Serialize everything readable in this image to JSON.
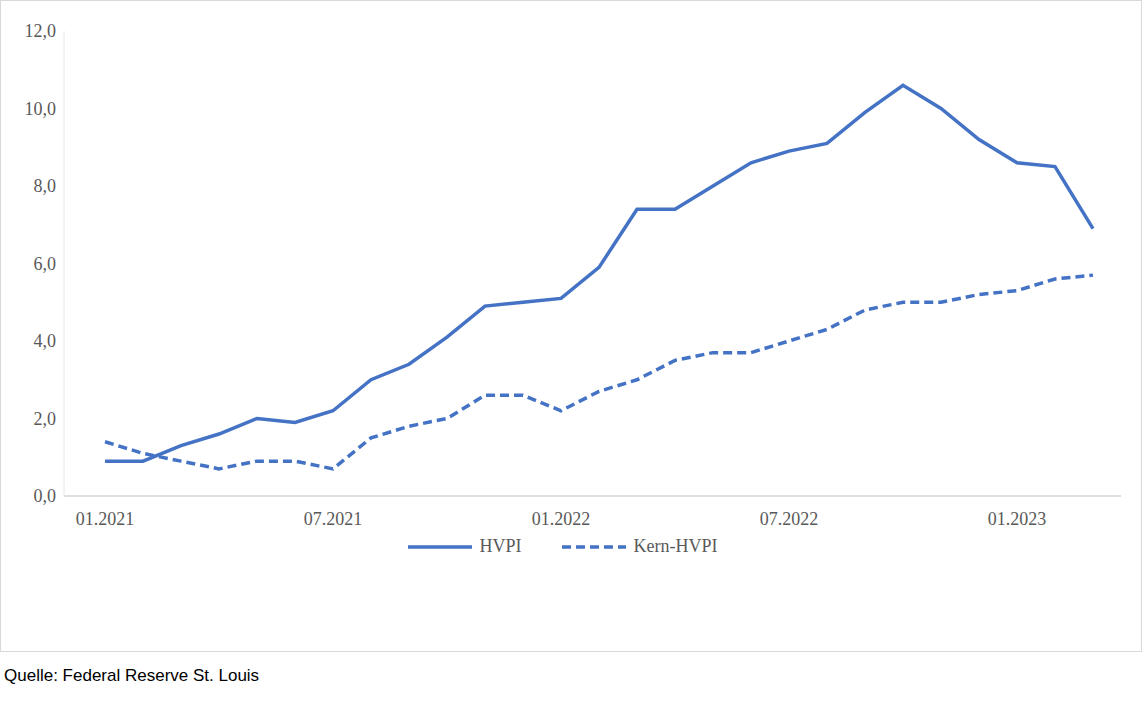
{
  "chart_data": {
    "type": "line",
    "source": "Quelle: Federal Reserve St. Louis",
    "categories": [
      "01.2021",
      null,
      null,
      null,
      null,
      null,
      "07.2021",
      null,
      null,
      null,
      null,
      null,
      "01.2022",
      null,
      null,
      null,
      null,
      null,
      "07.2022",
      null,
      null,
      null,
      null,
      null,
      "01.2023",
      null,
      null
    ],
    "series": [
      {
        "name": "HVPI",
        "color": "#4472c4",
        "line_style": "solid",
        "marker": "none",
        "values": [
          0.9,
          0.9,
          1.3,
          1.6,
          2.0,
          1.9,
          2.2,
          3.0,
          3.4,
          4.1,
          4.9,
          5.0,
          5.1,
          5.9,
          7.4,
          7.4,
          8.0,
          8.6,
          8.9,
          9.1,
          9.9,
          10.6,
          10.0,
          9.2,
          8.6,
          8.5,
          6.9
        ]
      },
      {
        "name": "Kern-HVPI",
        "color": "#4472c4",
        "line_style": "dashed",
        "marker": "none",
        "values": [
          1.4,
          1.1,
          0.9,
          0.7,
          0.9,
          0.9,
          0.7,
          1.5,
          1.8,
          2.0,
          2.6,
          2.6,
          2.2,
          2.7,
          3.0,
          3.5,
          3.7,
          3.7,
          4.0,
          4.3,
          4.8,
          5.0,
          5.0,
          5.2,
          5.3,
          5.6,
          5.7
        ]
      }
    ],
    "ylim": [
      0,
      12
    ],
    "yticks": [
      {
        "value": 0,
        "label": "0,0"
      },
      {
        "value": 2,
        "label": "2,0"
      },
      {
        "value": 4,
        "label": "4,0"
      },
      {
        "value": 6,
        "label": "6,0"
      },
      {
        "value": 8,
        "label": "8,0"
      },
      {
        "value": 10,
        "label": "10,0"
      },
      {
        "value": 12,
        "label": "12,0"
      }
    ],
    "grid": false,
    "legend": "bottom"
  }
}
